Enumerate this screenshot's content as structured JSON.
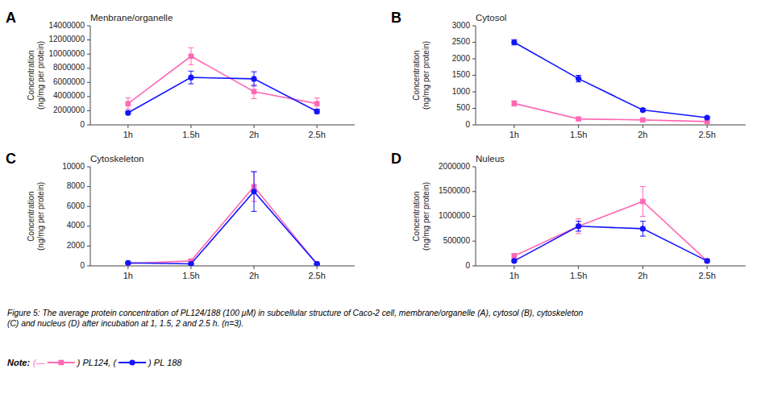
{
  "chart_data": [
    {
      "type": "line",
      "title": "Menbrane/organelle",
      "annotations": [
        "A"
      ],
      "x": [
        1,
        1.5,
        2,
        2.5
      ],
      "xlim": [
        0.7,
        2.8
      ],
      "xticks": [
        {
          "value": 1,
          "label": "1h"
        },
        {
          "value": 1.5,
          "label": "1.5h"
        },
        {
          "value": 2,
          "label": "2h"
        },
        {
          "value": 2.5,
          "label": "2.5h"
        }
      ],
      "ylabel": "Concentration\n(ng/mg per protein)",
      "ylim": [
        0,
        14000000
      ],
      "yticks": [
        0,
        2000000,
        4000000,
        6000000,
        8000000,
        10000000,
        12000000,
        14000000
      ],
      "grid": false,
      "series": [
        {
          "color": "#FF69B4",
          "marker": "square",
          "line_style": "solid",
          "values": [
            3000000,
            9700000,
            4700000,
            3000000
          ],
          "errors": [
            800000,
            1200000,
            1000000,
            800000
          ]
        },
        {
          "color": "#1414FF",
          "marker": "circle",
          "line_style": "solid",
          "values": [
            1700000,
            6700000,
            6500000,
            1900000
          ],
          "errors": [
            200000,
            900000,
            1000000,
            300000
          ]
        }
      ]
    },
    {
      "type": "line",
      "title": "Cytosol",
      "annotations": [
        "B"
      ],
      "x": [
        1,
        1.5,
        2,
        2.5
      ],
      "xlim": [
        0.7,
        2.8
      ],
      "xticks": [
        {
          "value": 1,
          "label": "1h"
        },
        {
          "value": 1.5,
          "label": "1.5h"
        },
        {
          "value": 2,
          "label": "2h"
        },
        {
          "value": 2.5,
          "label": "2.5h"
        }
      ],
      "ylabel": "Concentration\n(ng/mg per protein)",
      "ylim": [
        0,
        3000
      ],
      "yticks": [
        0,
        500,
        1000,
        1500,
        2000,
        2500,
        3000
      ],
      "grid": false,
      "series": [
        {
          "color": "#FF69B4",
          "marker": "square",
          "line_style": "solid",
          "values": [
            650,
            180,
            150,
            100
          ],
          "errors": [
            80,
            30,
            20,
            20
          ]
        },
        {
          "color": "#1414FF",
          "marker": "circle",
          "line_style": "solid",
          "values": [
            2500,
            1400,
            450,
            220
          ],
          "errors": [
            80,
            100,
            50,
            30
          ]
        }
      ]
    },
    {
      "type": "line",
      "title": "Cytoskeleton",
      "annotations": [
        "C"
      ],
      "x": [
        1,
        1.5,
        2,
        2.5
      ],
      "xlim": [
        0.7,
        2.8
      ],
      "xticks": [
        {
          "value": 1,
          "label": "1h"
        },
        {
          "value": 1.5,
          "label": "1.5h"
        },
        {
          "value": 2,
          "label": "2h"
        },
        {
          "value": 2.5,
          "label": "2.5h"
        }
      ],
      "ylabel": "Concentration\n(ng/mg per protein)",
      "ylim": [
        0,
        10000
      ],
      "yticks": [
        0,
        2000,
        4000,
        6000,
        8000,
        10000
      ],
      "grid": false,
      "series": [
        {
          "color": "#FF69B4",
          "marker": "square",
          "line_style": "solid",
          "values": [
            250,
            500,
            8000,
            200
          ],
          "errors": [
            80,
            100,
            1500,
            50
          ]
        },
        {
          "color": "#1414FF",
          "marker": "circle",
          "line_style": "solid",
          "values": [
            300,
            200,
            7500,
            200
          ],
          "errors": [
            50,
            50,
            2000,
            50
          ]
        }
      ]
    },
    {
      "type": "line",
      "title": "Nuleus",
      "annotations": [
        "D"
      ],
      "x": [
        1,
        1.5,
        2,
        2.5
      ],
      "xlim": [
        0.7,
        2.8
      ],
      "xticks": [
        {
          "value": 1,
          "label": "1h"
        },
        {
          "value": 1.5,
          "label": "1.5h"
        },
        {
          "value": 2,
          "label": "2h"
        },
        {
          "value": 2.5,
          "label": "2.5h"
        }
      ],
      "ylabel": "Concentration\n(ng/mg per protein)",
      "ylim": [
        0,
        2000000
      ],
      "yticks": [
        0,
        500000,
        1000000,
        1500000,
        2000000
      ],
      "grid": false,
      "series": [
        {
          "color": "#FF69B4",
          "marker": "square",
          "line_style": "solid",
          "values": [
            200000,
            800000,
            1300000,
            100000
          ],
          "errors": [
            50000,
            150000,
            300000,
            30000
          ]
        },
        {
          "color": "#1414FF",
          "marker": "circle",
          "line_style": "solid",
          "values": [
            100000,
            800000,
            750000,
            100000
          ],
          "errors": [
            20000,
            100000,
            150000,
            20000
          ]
        }
      ]
    }
  ],
  "caption": "Figure 5: The average protein concentration of PL124/188 (100 μM) in subcellular structure of Caco-2 cell, membrane/organelle (A), cytosol (B), cytoskeleton\n(C) and nucleus (D) after incubation at 1, 1.5, 2 and 2.5 h. (n=3).",
  "note": {
    "label": "Note: ",
    "parts": [
      "(—",
      ") PL124, (",
      ") PL 188"
    ]
  }
}
